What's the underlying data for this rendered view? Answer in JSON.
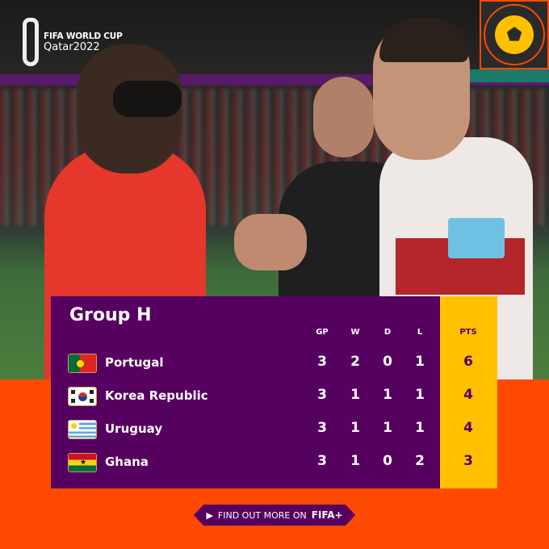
{
  "logo": {
    "line1": "FIFA WORLD CUP",
    "line2": "Qatar2022"
  },
  "table": {
    "title": "Group H",
    "headers": {
      "gp": "GP",
      "w": "W",
      "d": "D",
      "l": "L",
      "pts": "PTS"
    },
    "rows": [
      {
        "team": "Portugal",
        "flag": "portugal-flag",
        "gp": "3",
        "w": "2",
        "d": "0",
        "l": "1",
        "pts": "6"
      },
      {
        "team": "Korea Republic",
        "flag": "korea-flag",
        "gp": "3",
        "w": "1",
        "d": "1",
        "l": "1",
        "pts": "4"
      },
      {
        "team": "Uruguay",
        "flag": "uruguay-flag",
        "gp": "3",
        "w": "1",
        "d": "1",
        "l": "1",
        "pts": "4"
      },
      {
        "team": "Ghana",
        "flag": "ghana-flag",
        "gp": "3",
        "w": "1",
        "d": "0",
        "l": "2",
        "pts": "3"
      }
    ]
  },
  "cta": {
    "label": "FIND OUT MORE ON",
    "brand": "FIFA+",
    "icon": "play-icon"
  },
  "colors": {
    "panel": "#56005f",
    "points": "#ffc000",
    "background": "#fe4a00"
  }
}
